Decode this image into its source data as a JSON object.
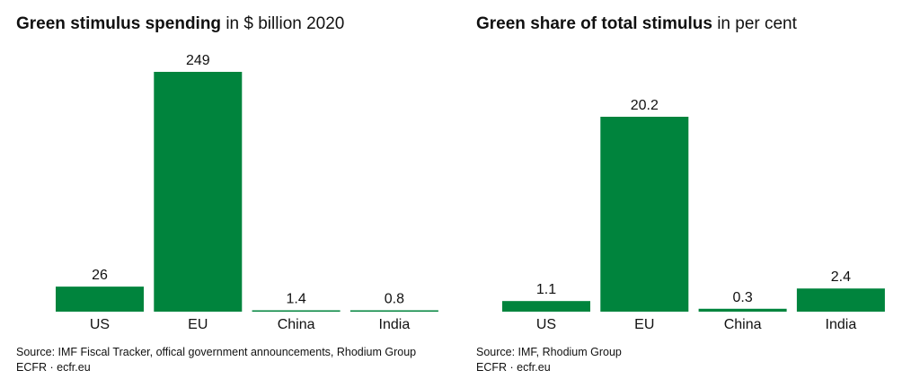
{
  "colors": {
    "bar": "#00843d",
    "text": "#111111"
  },
  "chart_data": [
    {
      "type": "bar",
      "title": "Green stimulus spending",
      "subtitle": "in $ billion 2020",
      "categories": [
        "US",
        "EU",
        "China",
        "India"
      ],
      "values": [
        26,
        249,
        1.4,
        0.8
      ],
      "value_labels": [
        "26",
        "249",
        "1.4",
        "0.8"
      ],
      "ylim": [
        0,
        249
      ],
      "xlabel": "",
      "ylabel": "",
      "grid": false,
      "source_line1": "Source: IMF Fiscal Tracker, offical government announcements, Rhodium Group",
      "source_line2": "ECFR · ecfr.eu"
    },
    {
      "type": "bar",
      "title": "Green share of total stimulus",
      "subtitle": "in per cent",
      "categories": [
        "US",
        "EU",
        "China",
        "India"
      ],
      "values": [
        1.1,
        20.2,
        0.3,
        2.4
      ],
      "value_labels": [
        "1.1",
        "20.2",
        "0.3",
        "2.4"
      ],
      "ylim": [
        0,
        20.2
      ],
      "xlabel": "",
      "ylabel": "",
      "grid": false,
      "source_line1": "Source: IMF, Rhodium Group",
      "source_line2": "ECFR · ecfr.eu"
    }
  ]
}
